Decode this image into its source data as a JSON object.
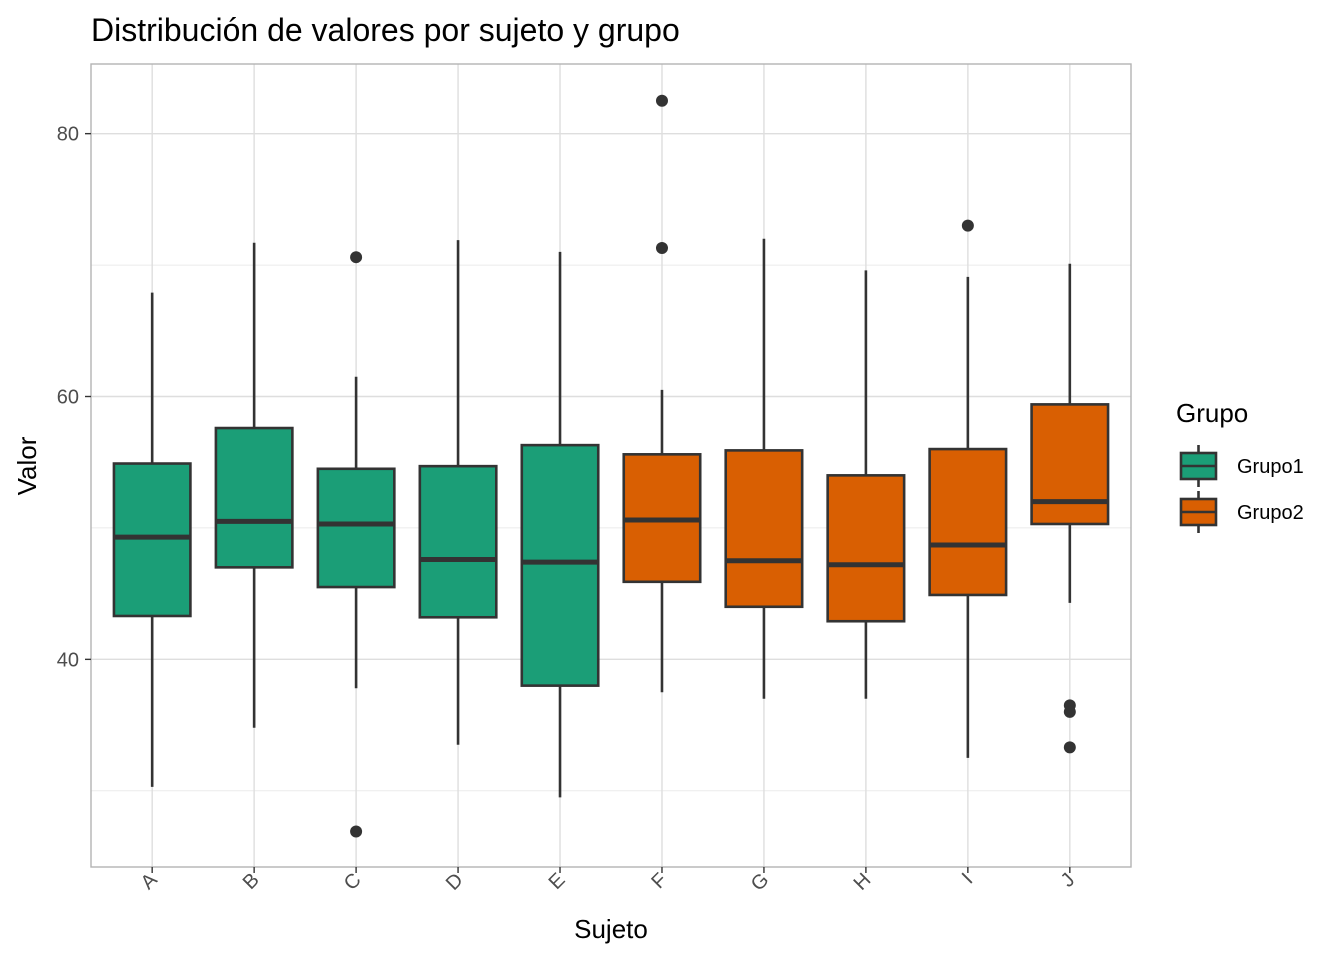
{
  "chart_data": {
    "type": "boxplot",
    "title": "Distribución de valores por sujeto y grupo",
    "xlabel": "Sujeto",
    "ylabel": "Valor",
    "ylim": [
      24.2,
      85.3
    ],
    "yticks": [
      40,
      60,
      80
    ],
    "grid": true,
    "legend": {
      "title": "Grupo",
      "position": "right",
      "items": [
        {
          "name": "Grupo1",
          "color": "#1b9e77"
        },
        {
          "name": "Grupo2",
          "color": "#d95f02"
        }
      ]
    },
    "categories": [
      "A",
      "B",
      "C",
      "D",
      "E",
      "F",
      "G",
      "H",
      "I",
      "J"
    ],
    "boxes": [
      {
        "category": "A",
        "group": "Grupo1",
        "min": 30.3,
        "q1": 43.3,
        "median": 49.3,
        "q3": 54.9,
        "max": 67.9,
        "outliers": []
      },
      {
        "category": "B",
        "group": "Grupo1",
        "min": 34.8,
        "q1": 47.0,
        "median": 50.5,
        "q3": 57.6,
        "max": 71.7,
        "outliers": []
      },
      {
        "category": "C",
        "group": "Grupo1",
        "min": 37.8,
        "q1": 45.5,
        "median": 50.3,
        "q3": 54.5,
        "max": 61.5,
        "outliers": [
          70.6,
          26.9
        ]
      },
      {
        "category": "D",
        "group": "Grupo1",
        "min": 33.5,
        "q1": 43.2,
        "median": 47.6,
        "q3": 54.7,
        "max": 71.9,
        "outliers": []
      },
      {
        "category": "E",
        "group": "Grupo1",
        "min": 29.5,
        "q1": 38.0,
        "median": 47.4,
        "q3": 56.3,
        "max": 71.0,
        "outliers": []
      },
      {
        "category": "F",
        "group": "Grupo2",
        "min": 37.5,
        "q1": 45.9,
        "median": 50.6,
        "q3": 55.6,
        "max": 60.5,
        "outliers": [
          82.5,
          71.3
        ]
      },
      {
        "category": "G",
        "group": "Grupo2",
        "min": 37.0,
        "q1": 44.0,
        "median": 47.5,
        "q3": 55.9,
        "max": 72.0,
        "outliers": []
      },
      {
        "category": "H",
        "group": "Grupo2",
        "min": 37.0,
        "q1": 42.9,
        "median": 47.2,
        "q3": 54.0,
        "max": 69.6,
        "outliers": []
      },
      {
        "category": "I",
        "group": "Grupo2",
        "min": 32.5,
        "q1": 44.9,
        "median": 48.7,
        "q3": 56.0,
        "max": 69.1,
        "outliers": [
          73.0
        ]
      },
      {
        "category": "J",
        "group": "Grupo2",
        "min": 44.3,
        "q1": 50.3,
        "median": 52.0,
        "q3": 59.4,
        "max": 70.1,
        "outliers": [
          36.5,
          36.0,
          33.3
        ]
      }
    ]
  }
}
